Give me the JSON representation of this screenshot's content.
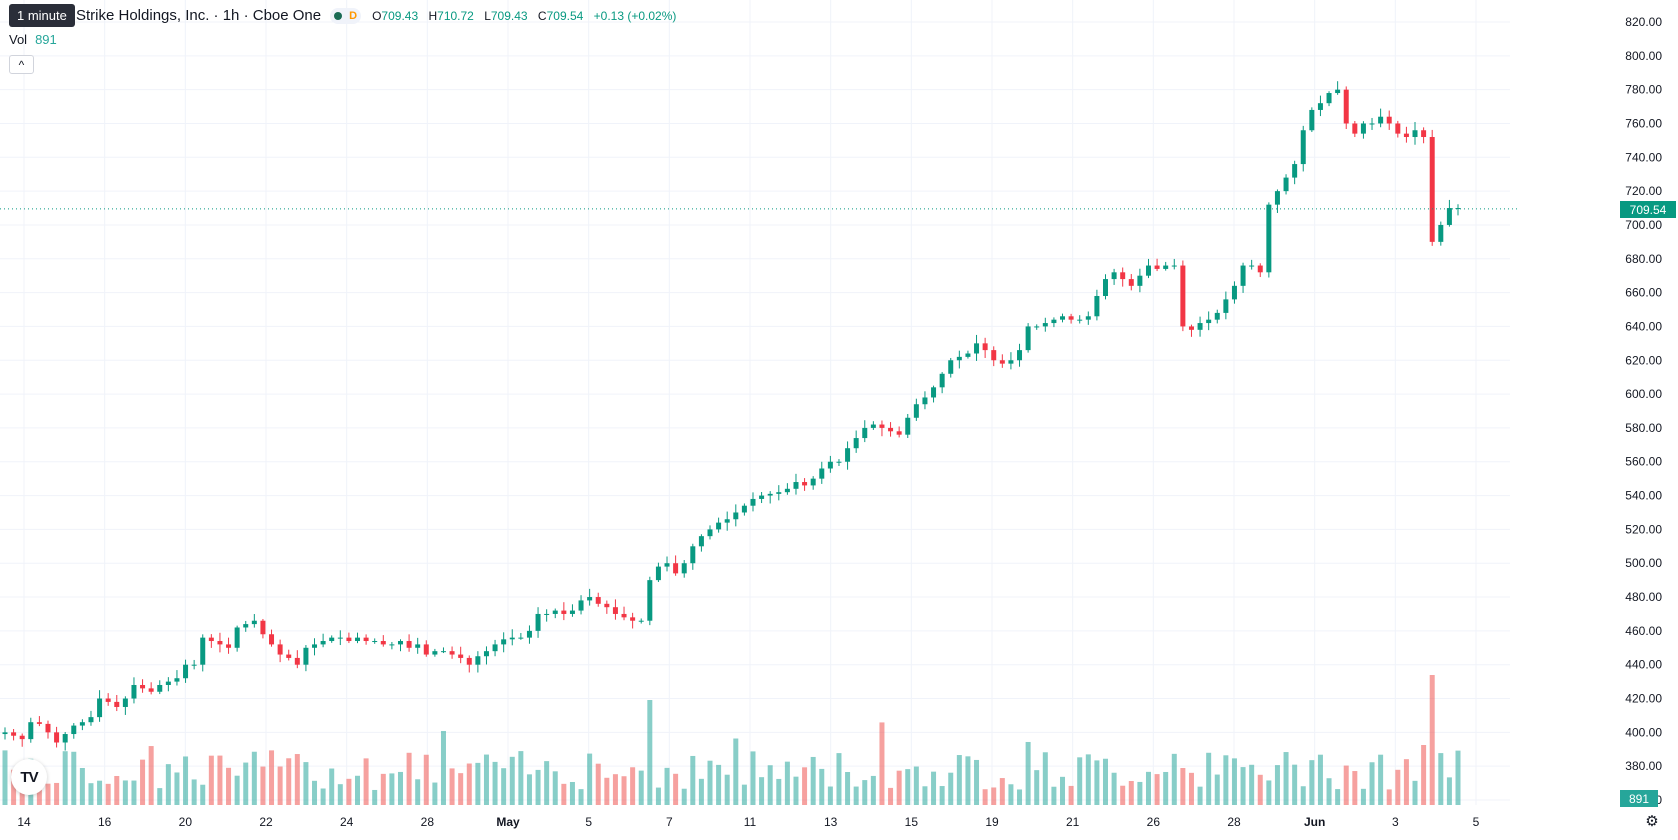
{
  "legend": {
    "title": "Strike Holdings, Inc. · 1h · Cboe One",
    "o_key": "O",
    "o": "709.43",
    "h_key": "H",
    "h": "710.72",
    "l_key": "L",
    "l": "709.43",
    "c_key": "C",
    "c": "709.54",
    "change": "+0.13 (+0.02%)",
    "badge_d": "D"
  },
  "tooltip": "1 minute",
  "volume": {
    "label": "Vol",
    "value": "891"
  },
  "collapse_icon": "chevron-up-icon",
  "price_axis": {
    "labels": [
      "820.00",
      "800.00",
      "780.00",
      "760.00",
      "740.00",
      "720.00",
      "700.00",
      "680.00",
      "660.00",
      "640.00",
      "620.00",
      "600.00",
      "580.00",
      "560.00",
      "540.00",
      "520.00",
      "500.00",
      "480.00",
      "460.00",
      "440.00",
      "420.00",
      "400.00",
      "380.00",
      "360.00"
    ],
    "current_price": "709.54",
    "current_volume": "891"
  },
  "time_axis": [
    "14",
    "16",
    "20",
    "22",
    "24",
    "28",
    "May",
    "5",
    "7",
    "11",
    "13",
    "15",
    "19",
    "21",
    "26",
    "28",
    "Jun",
    "3",
    "5"
  ],
  "colors": {
    "up": "#089981",
    "down": "#f23645",
    "vol_up": "#26a69a",
    "vol_down": "#ef5350"
  },
  "chart_data": {
    "type": "candlestick",
    "title": "Strike Holdings, Inc. · 1h · Cboe One",
    "ylim": [
      355,
      825
    ],
    "grid": true,
    "series": [
      {
        "name": "price",
        "closes": [
          400,
          398,
          396,
          406,
          405,
          400,
          394,
          399,
          404,
          406,
          409,
          420,
          418,
          415,
          420,
          428,
          426,
          424,
          428,
          430,
          432,
          440,
          440,
          456,
          454,
          452,
          450,
          462,
          464,
          466,
          458,
          452,
          446,
          444,
          440,
          450,
          452,
          454,
          456,
          456,
          454,
          456,
          454,
          454,
          452,
          452,
          454,
          450,
          452,
          446,
          448,
          448,
          446,
          444,
          440,
          445,
          448,
          452,
          455,
          456,
          456,
          460,
          470,
          470,
          472,
          470,
          472,
          478,
          480,
          476,
          474,
          470,
          468,
          466,
          466,
          490,
          498,
          500,
          494,
          500,
          510,
          516,
          520,
          524,
          526,
          530,
          534,
          538,
          540,
          541,
          542,
          544,
          548,
          546,
          550,
          556,
          560,
          560,
          568,
          574,
          580,
          582,
          580,
          578,
          576,
          586,
          594,
          598,
          604,
          612,
          620,
          622,
          624,
          630,
          626,
          620,
          618,
          620,
          626,
          640,
          640,
          642,
          644,
          646,
          644,
          644,
          646,
          658,
          668,
          672,
          668,
          664,
          670,
          676,
          674,
          676,
          676,
          640,
          638,
          642,
          644,
          648,
          656,
          664,
          676,
          676,
          672,
          712,
          720,
          728,
          736,
          756,
          768,
          772,
          778,
          780,
          760,
          754,
          760,
          760,
          764,
          760,
          754,
          752,
          756,
          752,
          690,
          700,
          710,
          710
        ]
      }
    ]
  }
}
